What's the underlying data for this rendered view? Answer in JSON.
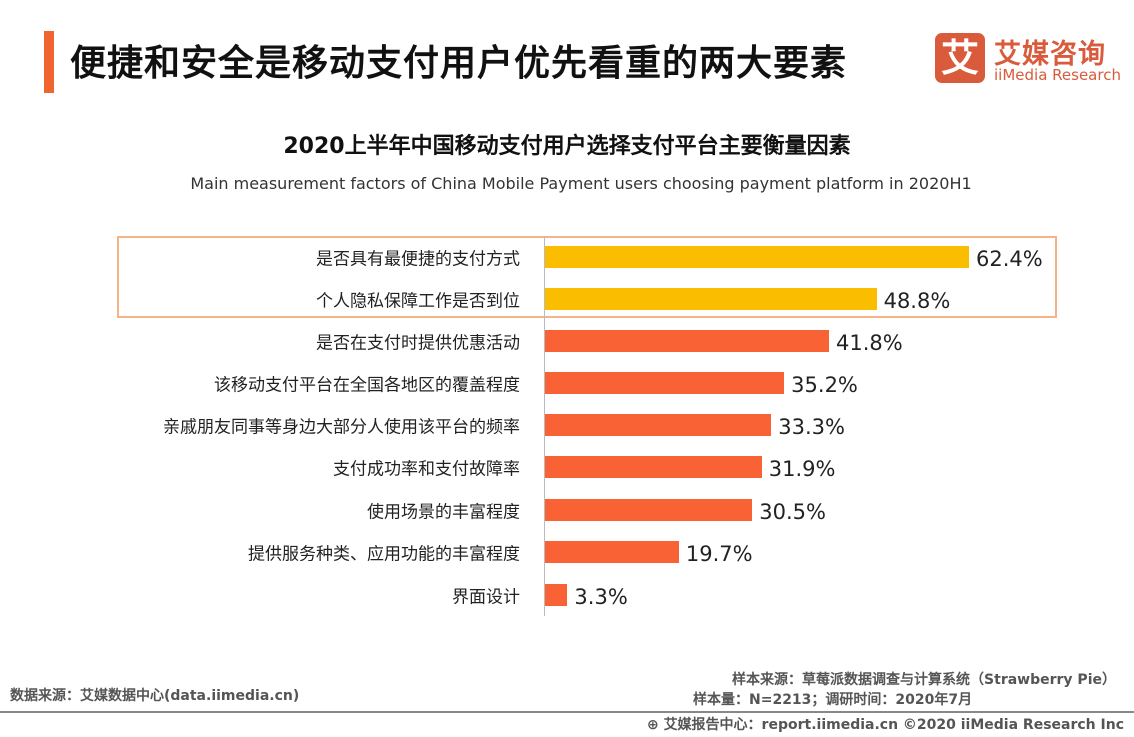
{
  "header": {
    "title": "便捷和安全是移动支付用户优先看重的两大要素",
    "accent_color": "#f0642f"
  },
  "logo": {
    "mark": "艾",
    "cn": "艾媒咨询",
    "en": "iiMedia Research"
  },
  "chart_data": {
    "type": "bar",
    "orientation": "horizontal",
    "title": "2020上半年中国移动支付用户选择支付平台主要衡量因素",
    "subtitle": "Main measurement factors of China Mobile Payment users choosing payment platform in 2020H1",
    "categories": [
      "是否具有最便捷的支付方式",
      "个人隐私保障工作是否到位",
      "是否在支付时提供优惠活动",
      "该移动支付平台在全国各地区的覆盖程度",
      "亲戚朋友同事等身边大部分人使用该平台的频率",
      "支付成功率和支付故障率",
      "使用场景的丰富程度",
      "提供服务种类、应用功能的丰富程度",
      "界面设计"
    ],
    "values": [
      62.4,
      48.8,
      41.8,
      35.2,
      33.3,
      31.9,
      30.5,
      19.7,
      3.3
    ],
    "labels": [
      "62.4%",
      "48.8%",
      "41.8%",
      "35.2%",
      "33.3%",
      "31.9%",
      "30.5%",
      "19.7%",
      "3.3%"
    ],
    "highlighted": [
      0,
      1
    ],
    "colors": {
      "highlight": "#fbbd00",
      "normal": "#f86234",
      "box": "#f6b38a"
    },
    "grid": false
  },
  "footer": {
    "source": "数据来源：艾媒数据中心(data.iimedia.cn)",
    "sample_source": "样本来源：草莓派数据调查与计算系统（Strawberry  Pie）",
    "sample_size": "样本量：N=2213；调研时间：2020年7月",
    "report": "艾媒报告中心：report.iimedia.cn   ©2020  iiMedia Research  Inc"
  }
}
